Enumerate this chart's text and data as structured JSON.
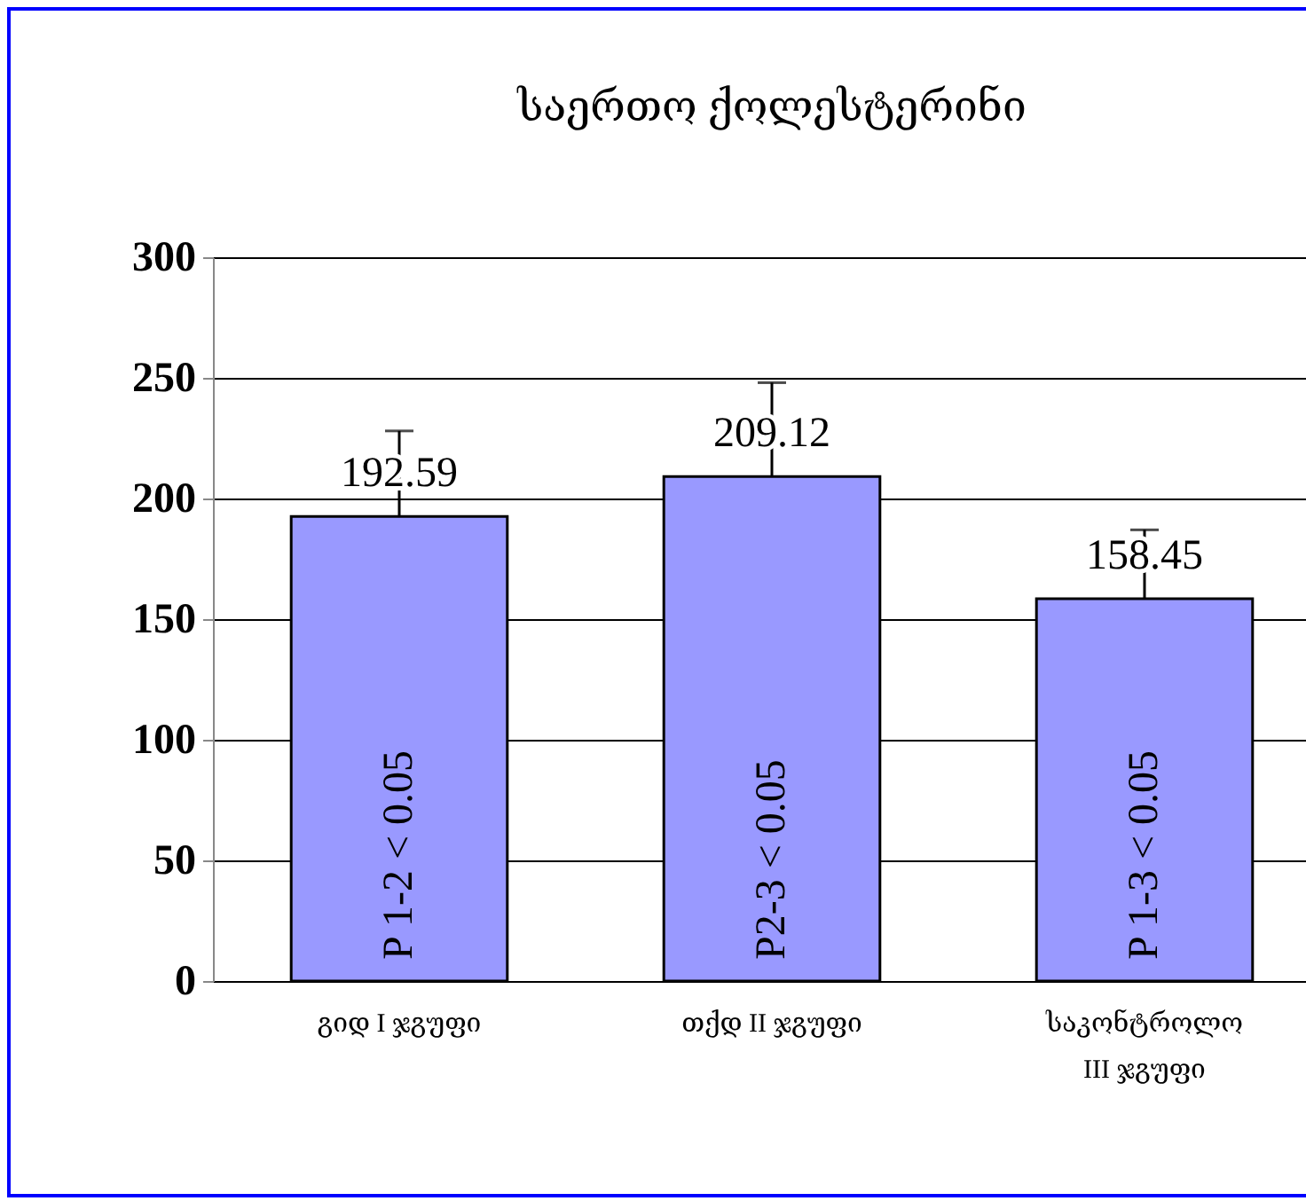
{
  "chart_data": {
    "type": "bar",
    "title": "საერთო  ქოლესტერინი",
    "categories": [
      "გიდ  I  ჯგუფი",
      "თქდ  II  ჯგუფი",
      "საკონტროლო III  ჯგუფი"
    ],
    "values": [
      192.59,
      209.12,
      158.45
    ],
    "errors": [
      [
        192.59,
        228
      ],
      [
        209.12,
        248
      ],
      [
        158.45,
        187
      ]
    ],
    "color": "#9999ff",
    "data_labels": true,
    "ylim": [
      0,
      300
    ],
    "yticks": [
      0,
      50,
      100,
      150,
      200,
      250,
      300
    ],
    "grid": "y",
    "annotations": [
      "P 1-2 < 0.05",
      "P2-3 < 0.05",
      "P 1-3 < 0.05"
    ]
  }
}
